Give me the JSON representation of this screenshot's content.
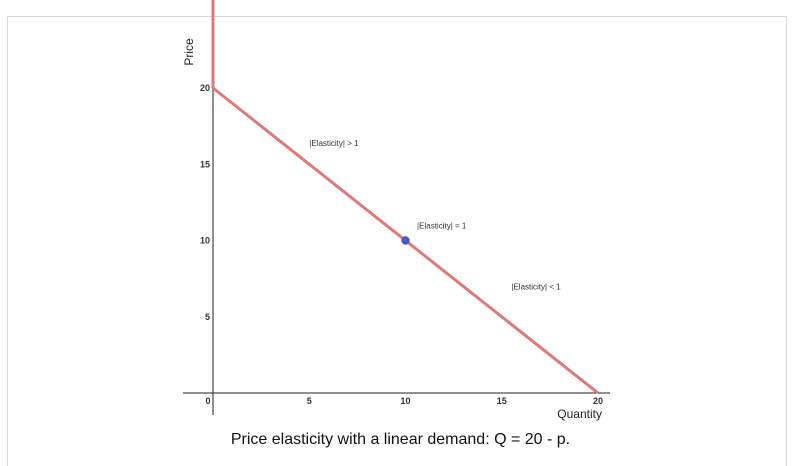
{
  "caption": "Price elasticity with a linear demand: Q = 20 - p.",
  "colors": {
    "curve": "#e07878",
    "point": "#4b56c4",
    "axis": "#222222"
  },
  "chart_data": {
    "type": "line",
    "title": "",
    "xlabel": "Quantity",
    "ylabel": "Price",
    "xlim": [
      0,
      20
    ],
    "ylim": [
      0,
      20
    ],
    "x_ticks": [
      0,
      5,
      10,
      15,
      20
    ],
    "y_ticks": [
      5,
      10,
      15,
      20
    ],
    "grid": false,
    "series": [
      {
        "x": [
          0,
          0,
          20
        ],
        "y": [
          29,
          20,
          0
        ]
      }
    ],
    "points": [
      {
        "x": 10,
        "y": 10
      }
    ],
    "annotations": [
      {
        "text": "|Elasticity| > 1",
        "x": 5,
        "y": 16.2
      },
      {
        "text": "|Elasticity| = 1",
        "x": 10.6,
        "y": 10.8
      },
      {
        "text": "|Elasticity| < 1",
        "x": 15.5,
        "y": 6.8
      }
    ]
  }
}
